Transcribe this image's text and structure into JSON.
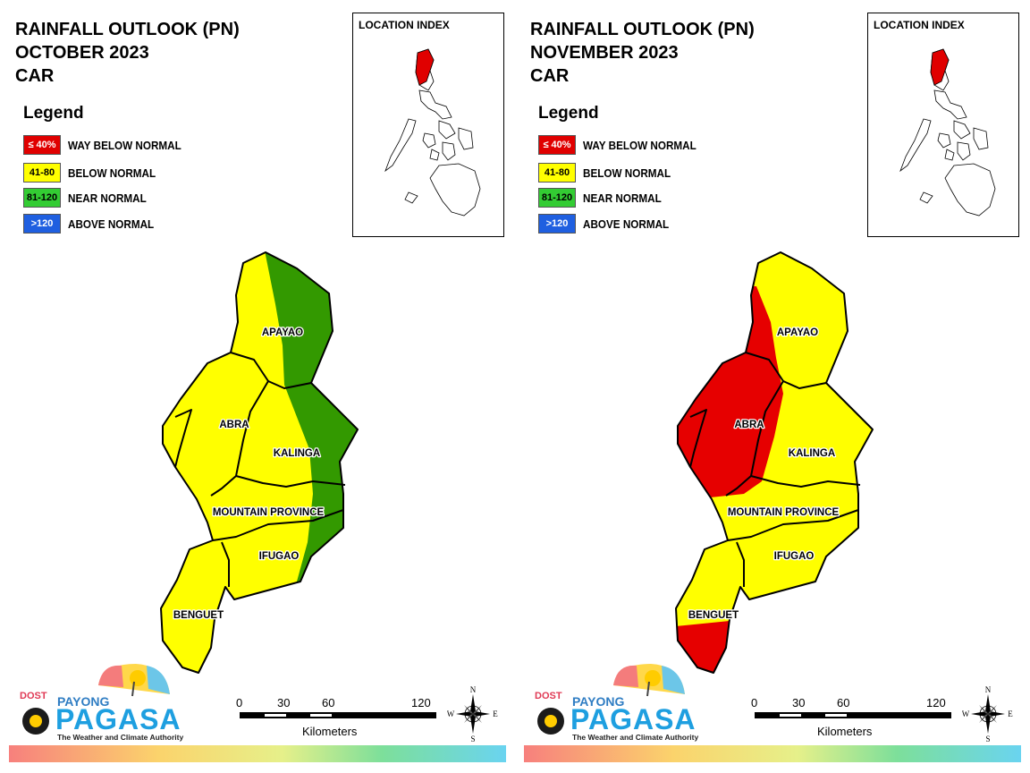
{
  "legend": {
    "title": "Legend",
    "items": [
      {
        "swatch_label": "≤ 40%",
        "label": "WAY BELOW NORMAL",
        "color": "#e00000",
        "text_color": "#ffffff"
      },
      {
        "swatch_label": "41-80",
        "label": "BELOW NORMAL",
        "color": "#ffff00",
        "text_color": "#000000"
      },
      {
        "swatch_label": "81-120",
        "label": "NEAR NORMAL",
        "color": "#33cc33",
        "text_color": "#000000"
      },
      {
        "swatch_label": ">120",
        "label": "ABOVE NORMAL",
        "color": "#1f5fe0",
        "text_color": "#ffffff"
      }
    ]
  },
  "location_index": {
    "title": "LOCATION INDEX"
  },
  "province_labels": {
    "apayao": "APAYAO",
    "abra": "ABRA",
    "kalinga": "KALINGA",
    "mountain_province": "MOUNTAIN PROVINCE",
    "ifugao": "IFUGAO",
    "benguet": "BENGUET"
  },
  "panels": [
    {
      "title_lines": [
        "RAINFALL OUTLOOK (PN)",
        "OCTOBER 2023",
        "CAR"
      ],
      "map_colors": {
        "base": "#ffff00",
        "zone_east": "#339900"
      }
    },
    {
      "title_lines": [
        "RAINFALL OUTLOOK (PN)",
        "NOVEMBER 2023",
        "CAR"
      ],
      "map_colors": {
        "base": "#ffff00",
        "zone_west": "#e60000"
      }
    }
  ],
  "scale_bar": {
    "ticks": [
      "0",
      "30",
      "60",
      "120"
    ],
    "unit": "Kilometers"
  },
  "compass": {
    "n": "N",
    "s": "S",
    "e": "E",
    "w": "W"
  },
  "logo": {
    "dost": "DOST",
    "payong": "PAYONG",
    "pagasa": "PAGASA",
    "tagline": "The Weather and Climate Authority"
  }
}
